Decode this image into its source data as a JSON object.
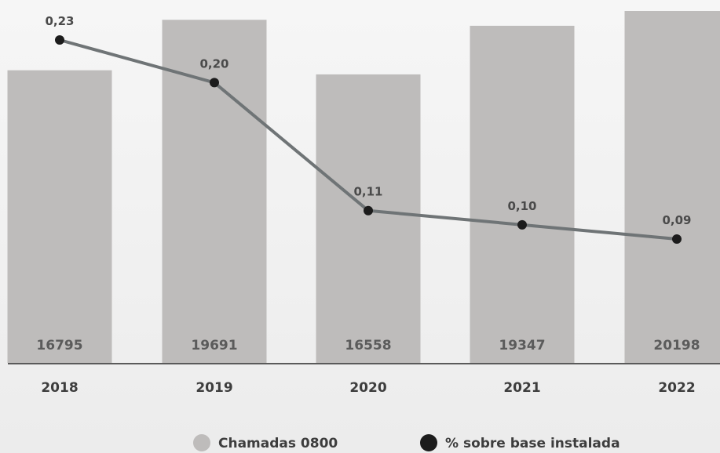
{
  "chart_data": {
    "type": "bar",
    "categories": [
      "2018",
      "2019",
      "2020",
      "2021",
      "2022"
    ],
    "series": [
      {
        "name": "Chamadas 0800",
        "type": "bar",
        "values": [
          16795,
          19691,
          16558,
          19347,
          20198
        ],
        "value_labels": [
          "16795",
          "19691",
          "16558",
          "19347",
          "20198"
        ]
      },
      {
        "name": "% sobre base instalada",
        "type": "line",
        "values": [
          0.23,
          0.2,
          0.11,
          0.1,
          0.09
        ],
        "value_labels": [
          "0,23",
          "0,20",
          "0,11",
          "0,10",
          "0,09"
        ]
      }
    ],
    "title": "",
    "xlabel": "",
    "ylabel": "",
    "legend_position": "bottom",
    "grid": false,
    "colors": {
      "bar": "#bebcbb",
      "line": "#6f7476",
      "point": "#1c1c1c",
      "axis": "#5a5a5a"
    }
  }
}
